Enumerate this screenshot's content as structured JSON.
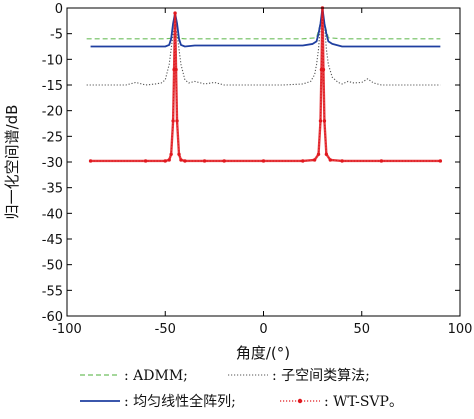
{
  "chart_data": {
    "type": "line",
    "title": "",
    "xlabel": "角度/(°)",
    "ylabel": "归一化空间谱/dB",
    "xlim": [
      -100,
      100
    ],
    "ylim": [
      -60,
      0
    ],
    "xticks": [
      -100,
      -50,
      0,
      50,
      100
    ],
    "yticks": [
      0,
      -5,
      -10,
      -15,
      -20,
      -25,
      -30,
      -35,
      -40,
      -45,
      -50,
      -55,
      -60
    ],
    "grid": false,
    "legend_position": "bottom",
    "series": [
      {
        "name": ": ADMM;",
        "color": "#6fbf5f",
        "style": "dashed",
        "x": [
          -90,
          -60,
          -50,
          -47,
          -45,
          -43,
          -40,
          -20,
          0,
          20,
          27,
          29,
          30,
          31,
          33,
          40,
          60,
          90
        ],
        "y": [
          -6,
          -6,
          -6,
          -5.9,
          -5.5,
          -5.9,
          -6,
          -6,
          -6,
          -6,
          -5.8,
          -3,
          0,
          -3,
          -5.8,
          -6,
          -6,
          -6
        ]
      },
      {
        "name": ": 子空间类算法;",
        "color": "#555555",
        "style": "dotted",
        "x": [
          -90,
          -70,
          -65,
          -60,
          -55,
          -52,
          -50,
          -48,
          -47,
          -46,
          -45,
          -44,
          -43,
          -42,
          -40,
          -38,
          -35,
          -30,
          -25,
          -20,
          -10,
          0,
          10,
          20,
          24,
          26,
          27,
          28,
          29,
          30,
          31,
          32,
          33,
          35,
          38,
          40,
          43,
          46,
          50,
          53,
          56,
          60,
          70,
          90
        ],
        "y": [
          -15,
          -15,
          -14.5,
          -15,
          -14.8,
          -14.6,
          -14,
          -11,
          -8,
          -5,
          -3.5,
          -5,
          -8,
          -11,
          -14,
          -14.6,
          -14.3,
          -14.8,
          -14.5,
          -15,
          -15,
          -15,
          -15,
          -14.8,
          -14.3,
          -13,
          -11,
          -8,
          -3,
          -1,
          -3,
          -8,
          -11,
          -13.5,
          -14.5,
          -14.8,
          -14.3,
          -14.6,
          -14.5,
          -13.8,
          -14.6,
          -15,
          -15,
          -15
        ]
      },
      {
        "name": ": 均匀线性全阵列;",
        "color": "#1f3fa0",
        "style": "solid",
        "x": [
          -88,
          -60,
          -50,
          -48,
          -47,
          -46,
          -45,
          -44,
          -43,
          -42,
          -40,
          -35,
          -20,
          0,
          20,
          25,
          27,
          28,
          29,
          30,
          31,
          32,
          33,
          35,
          40,
          60,
          90
        ],
        "y": [
          -7.5,
          -7.5,
          -7.5,
          -7.2,
          -6,
          -3,
          -1,
          -3,
          -6,
          -7.2,
          -7.5,
          -7.3,
          -7.3,
          -7.3,
          -7.3,
          -7,
          -6.5,
          -5,
          -3,
          0,
          -3,
          -5,
          -6.5,
          -7,
          -7.5,
          -7.5,
          -7.5
        ]
      },
      {
        "name": ": WT-SVP。",
        "color": "#e0191f",
        "style": "dotted-marker",
        "x": [
          -88,
          -60,
          -50,
          -48,
          -47,
          -46,
          -45.5,
          -45,
          -44.5,
          -44,
          -43,
          -42,
          -40,
          -30,
          -20,
          0,
          20,
          26,
          28,
          29,
          29.5,
          30,
          30.5,
          31,
          32,
          34,
          40,
          60,
          90
        ],
        "y": [
          -29.8,
          -29.8,
          -29.8,
          -29.6,
          -28.5,
          -22,
          -12,
          -1,
          -12,
          -22,
          -28.5,
          -29.6,
          -29.8,
          -29.8,
          -29.8,
          -29.8,
          -29.8,
          -29.6,
          -28.5,
          -22,
          -12,
          0,
          -12,
          -22,
          -28.5,
          -29.6,
          -29.8,
          -29.8,
          -29.8
        ]
      }
    ]
  }
}
